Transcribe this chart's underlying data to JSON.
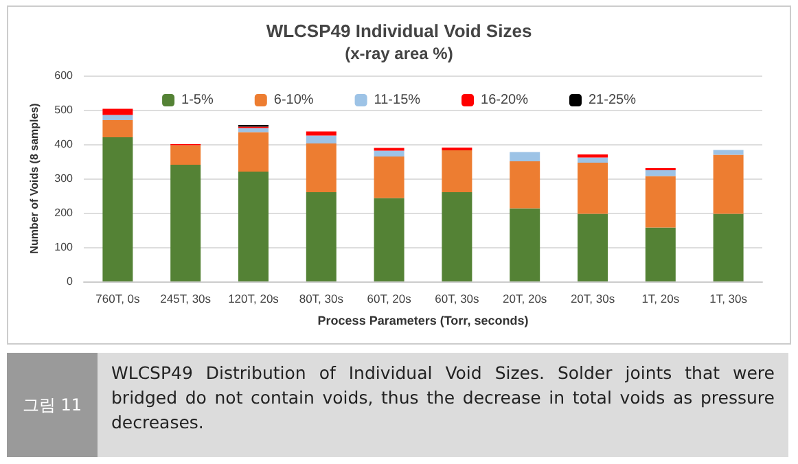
{
  "chart_data": {
    "type": "bar",
    "title": "WLCSP49 Individual Void Sizes",
    "subtitle": "(x-ray area %)",
    "xlabel": "Process Parameters (Torr, seconds)",
    "ylabel": "Number of Voids (8 samples)",
    "categories": [
      "760T, 0s",
      "245T, 30s",
      "120T, 20s",
      "80T, 30s",
      "60T, 20s",
      "60T, 30s",
      "20T, 20s",
      "20T, 30s",
      "1T, 20s",
      "1T, 30s"
    ],
    "series": [
      {
        "name": "1-5%",
        "color": "#548235",
        "values": [
          420,
          340,
          320,
          260,
          243,
          260,
          213,
          197,
          157,
          197
        ]
      },
      {
        "name": "6-10%",
        "color": "#ed7d31",
        "values": [
          50,
          57,
          115,
          142,
          121,
          122,
          137,
          149,
          150,
          172
        ]
      },
      {
        "name": "11-15%",
        "color": "#9dc3e6",
        "values": [
          15,
          0,
          12,
          23,
          17,
          0,
          27,
          15,
          17,
          14
        ]
      },
      {
        "name": "16-20%",
        "color": "#ff0000",
        "values": [
          18,
          3,
          4,
          12,
          8,
          8,
          0,
          9,
          6,
          0
        ]
      },
      {
        "name": "21-25%",
        "color": "#000000",
        "values": [
          0,
          0,
          5,
          0,
          0,
          0,
          0,
          0,
          0,
          0
        ]
      }
    ],
    "stacked": true,
    "ylim": [
      0,
      600
    ],
    "yticks": [
      0,
      100,
      200,
      300,
      400,
      500,
      600
    ],
    "grid": "y",
    "legend": "top",
    "annotations": [
      "그림 11",
      "WLCSP49 Distribution of Individual Void Sizes. Solder joints that were bridged do not contain voids, thus the decrease in total voids as pressure decreases."
    ]
  }
}
